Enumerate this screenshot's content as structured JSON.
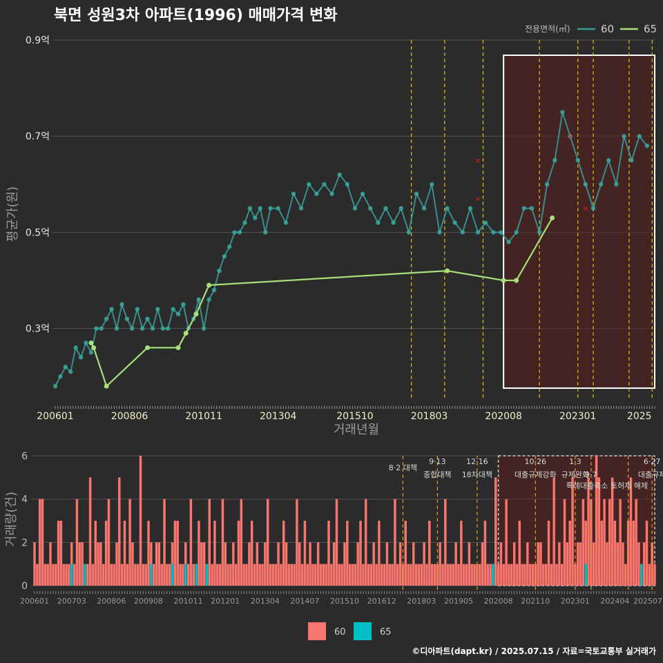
{
  "title": "북면 성원3차 아파트(1996) 매매가격 변화",
  "footer": "©디아파트(dapt.kr) / 2025.07.15 / 자료=국토교통부 실거래가",
  "colors": {
    "background": "#2b2b2b",
    "series60": "#3a9a96",
    "series60_point": "#3aa8a0",
    "series65": "#a8e07a",
    "bar60": "#f8766d",
    "bar65": "#00bfc4",
    "policy_line": "#e0c020",
    "highlight_fill": "#5a1e1e",
    "highlight_border": "#ffffff",
    "outlier": "#e02020"
  },
  "chart_data": [
    {
      "type": "line",
      "title": "북면 성원3차 아파트(1996) 매매가격 변화",
      "xlabel": "거래년월",
      "ylabel": "평균가(원)",
      "legend_title": "전용면적(㎡)",
      "legend_position": "top-right",
      "grid": true,
      "x_ticks": [
        "200601",
        "200806",
        "201011",
        "201304",
        "201510",
        "201803",
        "202008",
        "202301",
        "2025"
      ],
      "y_ticks": [
        "0.3억",
        "0.5억",
        "0.7억",
        "0.9억"
      ],
      "ylim": [
        0.18,
        0.9
      ],
      "series": [
        {
          "name": "60",
          "points": [
            [
              "2006-01",
              0.18
            ],
            [
              "2006-03",
              0.2
            ],
            [
              "2006-05",
              0.22
            ],
            [
              "2006-07",
              0.21
            ],
            [
              "2006-09",
              0.26
            ],
            [
              "2006-11",
              0.24
            ],
            [
              "2007-01",
              0.27
            ],
            [
              "2007-03",
              0.25
            ],
            [
              "2007-05",
              0.3
            ],
            [
              "2007-07",
              0.3
            ],
            [
              "2007-09",
              0.32
            ],
            [
              "2007-11",
              0.34
            ],
            [
              "2008-01",
              0.3
            ],
            [
              "2008-03",
              0.35
            ],
            [
              "2008-05",
              0.32
            ],
            [
              "2008-07",
              0.3
            ],
            [
              "2008-09",
              0.34
            ],
            [
              "2008-11",
              0.3
            ],
            [
              "2009-01",
              0.32
            ],
            [
              "2009-03",
              0.3
            ],
            [
              "2009-05",
              0.34
            ],
            [
              "2009-07",
              0.3
            ],
            [
              "2009-09",
              0.3
            ],
            [
              "2009-11",
              0.34
            ],
            [
              "2010-01",
              0.33
            ],
            [
              "2010-03",
              0.35
            ],
            [
              "2010-05",
              0.3
            ],
            [
              "2010-07",
              0.32
            ],
            [
              "2010-09",
              0.36
            ],
            [
              "2010-11",
              0.3
            ],
            [
              "2011-01",
              0.36
            ],
            [
              "2011-03",
              0.38
            ],
            [
              "2011-05",
              0.42
            ],
            [
              "2011-07",
              0.45
            ],
            [
              "2011-09",
              0.47
            ],
            [
              "2011-11",
              0.5
            ],
            [
              "2012-01",
              0.5
            ],
            [
              "2012-03",
              0.52
            ],
            [
              "2012-05",
              0.55
            ],
            [
              "2012-07",
              0.53
            ],
            [
              "2012-09",
              0.55
            ],
            [
              "2012-11",
              0.5
            ],
            [
              "2013-01",
              0.55
            ],
            [
              "2013-04",
              0.55
            ],
            [
              "2013-07",
              0.52
            ],
            [
              "2013-10",
              0.58
            ],
            [
              "2014-01",
              0.55
            ],
            [
              "2014-04",
              0.6
            ],
            [
              "2014-07",
              0.58
            ],
            [
              "2014-10",
              0.6
            ],
            [
              "2015-01",
              0.58
            ],
            [
              "2015-04",
              0.62
            ],
            [
              "2015-07",
              0.6
            ],
            [
              "2015-10",
              0.55
            ],
            [
              "2016-01",
              0.58
            ],
            [
              "2016-04",
              0.55
            ],
            [
              "2016-07",
              0.52
            ],
            [
              "2016-10",
              0.55
            ],
            [
              "2017-01",
              0.52
            ],
            [
              "2017-04",
              0.55
            ],
            [
              "2017-07",
              0.5
            ],
            [
              "2017-10",
              0.58
            ],
            [
              "2018-01",
              0.55
            ],
            [
              "2018-04",
              0.6
            ],
            [
              "2018-07",
              0.5
            ],
            [
              "2018-10",
              0.55
            ],
            [
              "2019-01",
              0.52
            ],
            [
              "2019-04",
              0.5
            ],
            [
              "2019-07",
              0.55
            ],
            [
              "2019-10",
              0.5
            ],
            [
              "2020-01",
              0.52
            ],
            [
              "2020-04",
              0.5
            ],
            [
              "2020-07",
              0.5
            ],
            [
              "2020-10",
              0.48
            ],
            [
              "2021-01",
              0.5
            ],
            [
              "2021-04",
              0.55
            ],
            [
              "2021-07",
              0.55
            ],
            [
              "2021-10",
              0.5
            ],
            [
              "2022-01",
              0.6
            ],
            [
              "2022-04",
              0.65
            ],
            [
              "2022-07",
              0.75
            ],
            [
              "2022-10",
              0.7
            ],
            [
              "2023-01",
              0.65
            ],
            [
              "2023-04",
              0.6
            ],
            [
              "2023-07",
              0.55
            ],
            [
              "2023-10",
              0.6
            ],
            [
              "2024-01",
              0.65
            ],
            [
              "2024-04",
              0.6
            ],
            [
              "2024-07",
              0.7
            ],
            [
              "2024-10",
              0.65
            ],
            [
              "2025-01",
              0.7
            ],
            [
              "2025-04",
              0.68
            ]
          ]
        },
        {
          "name": "65",
          "points": [
            [
              "2007-03",
              0.27
            ],
            [
              "2007-04",
              0.26
            ],
            [
              "2007-09",
              0.18
            ],
            [
              "2009-01",
              0.26
            ],
            [
              "2010-01",
              0.26
            ],
            [
              "2010-04",
              0.29
            ],
            [
              "2010-08",
              0.33
            ],
            [
              "2011-01",
              0.39
            ],
            [
              "2018-10",
              0.42
            ],
            [
              "2020-08",
              0.4
            ],
            [
              "2021-01",
              0.4
            ],
            [
              "2022-03",
              0.53
            ]
          ]
        }
      ],
      "outliers": [
        [
          "2019-10",
          0.65
        ],
        [
          "2019-10",
          0.57
        ],
        [
          "2022-10",
          0.7
        ],
        [
          "2023-04",
          0.55
        ]
      ],
      "highlight_range": [
        "2020-08",
        "2025-07"
      ],
      "policy_dates": [
        "2017-08",
        "2018-09",
        "2019-12",
        "2021-10",
        "2023-01",
        "2023-07",
        "2024-09",
        "2025-06"
      ]
    },
    {
      "type": "bar",
      "ylabel": "거래량(건)",
      "x_ticks": [
        "200601",
        "200703",
        "200806",
        "200908",
        "201011",
        "201201",
        "201304",
        "201407",
        "201510",
        "201612",
        "201803",
        "201905",
        "202008",
        "202110",
        "202301",
        "202404",
        "202507"
      ],
      "y_ticks": [
        "0",
        "2",
        "4",
        "6"
      ],
      "ylim": [
        0,
        6
      ],
      "series": [
        {
          "name": "60",
          "monthly_values": [
            2,
            1,
            4,
            4,
            1,
            1,
            2,
            1,
            1,
            3,
            3,
            1,
            1,
            1,
            2,
            1,
            4,
            2,
            2,
            1,
            1,
            5,
            1,
            3,
            2,
            2,
            1,
            3,
            4,
            1,
            1,
            2,
            5,
            1,
            3,
            1,
            4,
            2,
            1,
            1,
            6,
            1,
            1,
            3,
            2,
            1,
            2,
            2,
            1,
            4,
            1,
            1,
            2,
            3,
            3,
            1,
            1,
            2,
            1,
            4,
            1,
            1,
            3,
            2,
            2,
            1,
            4,
            1,
            3,
            1,
            1,
            4,
            2,
            1,
            1,
            2,
            1,
            3,
            4,
            1,
            1,
            2,
            3,
            1,
            2,
            1,
            1,
            2,
            4,
            1,
            1,
            1,
            2,
            1,
            3,
            2,
            1,
            1,
            1,
            4,
            2,
            1,
            3,
            1,
            2,
            1,
            1,
            2,
            1,
            1,
            1,
            3,
            1,
            2,
            4,
            1,
            1,
            2,
            3,
            1,
            1,
            1,
            2,
            3,
            1,
            4,
            1,
            1,
            2,
            1,
            3,
            1,
            1,
            2,
            1,
            1,
            4,
            1,
            2,
            1,
            3,
            1,
            1,
            2,
            1,
            1,
            1,
            2,
            1,
            3,
            1,
            1,
            1,
            2,
            1,
            4,
            1,
            1,
            1,
            2,
            1,
            3,
            1,
            1,
            2,
            1,
            1,
            1,
            1,
            2,
            3,
            1,
            1,
            1,
            5,
            1,
            2,
            1,
            4,
            1,
            1,
            2,
            1,
            3,
            1,
            1,
            2,
            1,
            1,
            1,
            2,
            2,
            1,
            1,
            3,
            1,
            5,
            1,
            2,
            1,
            4,
            2,
            3,
            5,
            1,
            2,
            2,
            4,
            3,
            5,
            4,
            2,
            6,
            5,
            3,
            4,
            2,
            4,
            5,
            3,
            2,
            4,
            2,
            1,
            3,
            5,
            3,
            4,
            2,
            1,
            2,
            3,
            1,
            2,
            1,
            4,
            3,
            2,
            1,
            2,
            5,
            1,
            3,
            2,
            1,
            1,
            4,
            3,
            2,
            1,
            2,
            1,
            5,
            3,
            2,
            4,
            2,
            1,
            3,
            2
          ]
        },
        {
          "name": "65",
          "monthly_values": [
            0,
            0,
            0,
            0,
            0,
            0,
            0,
            0,
            0,
            0,
            0,
            0,
            0,
            0,
            1,
            0,
            0,
            0,
            0,
            1,
            0,
            0,
            0,
            0,
            0,
            0,
            0,
            0,
            0,
            0,
            0,
            0,
            0,
            0,
            0,
            0,
            0,
            0,
            0,
            0,
            0,
            0,
            0,
            0,
            1,
            0,
            0,
            0,
            0,
            0,
            0,
            0,
            1,
            0,
            0,
            0,
            0,
            1,
            0,
            0,
            0,
            1,
            0,
            0,
            0,
            1,
            0,
            0,
            0,
            0,
            0,
            0,
            0,
            0,
            0,
            0,
            0,
            0,
            0,
            0,
            0,
            0,
            0,
            0,
            0,
            0,
            0,
            0,
            0,
            0,
            0,
            0,
            0,
            0,
            0,
            0,
            0,
            0,
            0,
            0,
            0,
            0,
            0,
            0,
            0,
            0,
            0,
            0,
            0,
            0,
            0,
            0,
            0,
            0,
            0,
            0,
            0,
            0,
            0,
            0,
            0,
            0,
            0,
            0,
            0,
            0,
            0,
            0,
            0,
            0,
            0,
            0,
            0,
            0,
            0,
            0,
            0,
            0,
            0,
            0,
            0,
            0,
            0,
            0,
            0,
            0,
            0,
            0,
            0,
            0,
            0,
            0,
            0,
            0,
            0,
            0,
            0,
            0,
            0,
            0,
            0,
            0,
            0,
            0,
            0,
            0,
            0,
            0,
            0,
            0,
            0,
            0,
            0,
            1,
            0,
            0,
            0,
            0,
            0,
            0,
            0,
            0,
            0,
            0,
            0,
            0,
            0,
            0,
            0,
            0,
            0,
            0,
            0,
            0,
            0,
            0,
            0,
            0,
            0,
            0,
            0,
            0,
            0,
            0,
            0,
            0,
            0,
            0,
            1,
            0,
            0,
            0,
            0,
            0,
            0,
            0,
            0,
            0,
            0,
            0,
            0,
            0,
            0,
            0,
            0,
            0,
            0,
            0,
            0,
            1,
            0,
            0,
            0,
            0,
            0,
            0,
            0,
            0,
            0,
            0,
            0,
            0,
            0,
            0,
            0,
            0,
            0,
            0,
            0,
            0,
            0,
            0,
            0,
            0,
            0,
            0,
            0,
            0,
            0,
            0,
            0,
            0,
            0,
            0,
            0
          ]
        }
      ],
      "policy_annotations": [
        {
          "date": "2017-08",
          "line1": "8·2 대책",
          "line2": ""
        },
        {
          "date": "2018-09",
          "line1": "9·13",
          "line2": "종합대책"
        },
        {
          "date": "2019-12",
          "line1": "12·16",
          "line2": "18차대책"
        },
        {
          "date": "2021-10",
          "line1": "10·26",
          "line2": "대출규제강화"
        },
        {
          "date": "2023-01",
          "line1": "1·3",
          "line2": "규제완화"
        },
        {
          "date": "2023-07",
          "line1": "",
          "line2": "9·7"
        },
        {
          "date": "2025-06",
          "line1": "6·27",
          "line2": "대출규제"
        }
      ],
      "extra_annotation": "특례대출축소 토허제 해제",
      "legend": [
        "60",
        "65"
      ]
    }
  ]
}
